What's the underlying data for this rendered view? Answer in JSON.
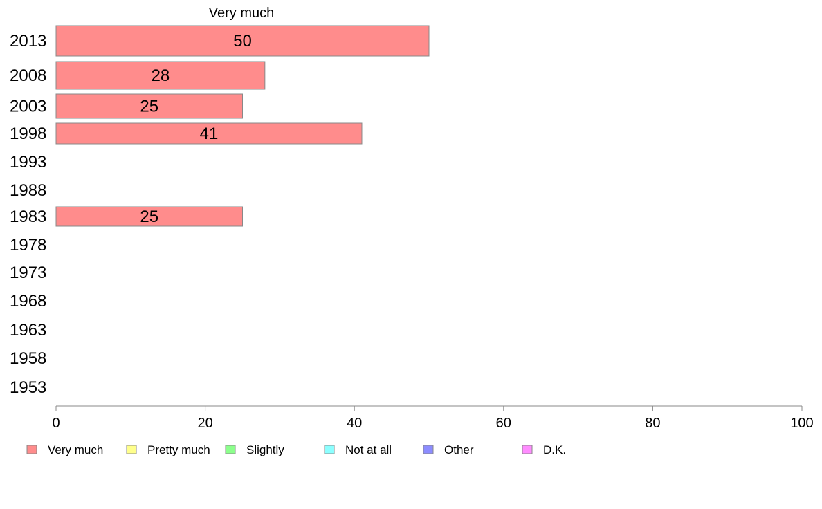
{
  "chart_data": {
    "type": "bar",
    "orientation": "horizontal",
    "stacked": true,
    "title": "",
    "series_header": "Very much",
    "categories": [
      "2013",
      "2008",
      "2003",
      "1998",
      "1993",
      "1988",
      "1983",
      "1978",
      "1973",
      "1968",
      "1963",
      "1958",
      "1953"
    ],
    "series": [
      {
        "name": "Very much",
        "color": "#ff8c8c",
        "values": [
          50,
          28,
          25,
          41,
          null,
          null,
          25,
          null,
          null,
          null,
          null,
          null,
          null
        ],
        "labels": [
          "50",
          "28",
          "25",
          "41",
          "",
          "",
          "25",
          "",
          "",
          "",
          "",
          "",
          ""
        ]
      }
    ],
    "xlim": [
      0,
      100
    ],
    "xticks": [
      "0",
      "20",
      "40",
      "60",
      "80",
      "100"
    ],
    "grid": false,
    "legend_position": "bottom",
    "legend": [
      {
        "label": "Very much",
        "color": "#ff8c8c"
      },
      {
        "label": "Pretty much",
        "color": "#ffff8c"
      },
      {
        "label": "Slightly",
        "color": "#8cff8c"
      },
      {
        "label": "Not at all",
        "color": "#8cffff"
      },
      {
        "label": "Other",
        "color": "#8c8cff"
      },
      {
        "label": "D.K.",
        "color": "#ff8cff"
      }
    ],
    "bar_edge_color": "#888888",
    "axis_color": "#888888"
  }
}
